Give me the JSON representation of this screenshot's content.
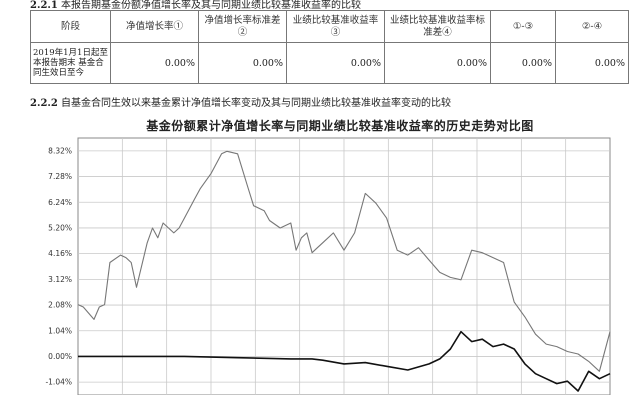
{
  "section_top": {
    "label": "2.2.1",
    "text": "本报告期基金份额净值增长率及其与同期业绩比较基准收益率的比较"
  },
  "performance_table": {
    "headers": [
      "阶段",
      "净值增长率①",
      "净值增长率标准差②",
      "业绩比较基准收益率③",
      "业绩比较基准收益率标准差④",
      "①-③",
      "②-④"
    ],
    "row": {
      "period": "2019年1月1日起至本报告期末 基金合同生效日至今",
      "values": [
        "0.00%",
        "0.00%",
        "0.00%",
        "0.00%",
        "0.00%",
        "0.00%"
      ]
    }
  },
  "section_chart": {
    "label": "2.2.2",
    "text": "自基金合同生效以来基金累计净值增长率变动及其与同期业绩比较基准收益率变动的比较"
  },
  "chart_data": {
    "type": "line",
    "title": "基金份额累计净值增长率与同期业绩比较基准收益率的历史走势对比图",
    "y_ticks": [
      "8.32%",
      "7.28%",
      "6.24%",
      "5.20%",
      "4.16%",
      "3.12%",
      "2.08%",
      "1.04%",
      "0.00%",
      "-1.04%"
    ],
    "ylim": [
      -1.56,
      8.84
    ],
    "grid": true,
    "series": [
      {
        "name": "",
        "color": "#777777",
        "x": [
          0,
          1,
          3,
          4,
          5,
          6,
          8,
          9,
          10,
          11,
          13,
          14,
          15,
          16,
          18,
          19,
          20,
          22,
          23,
          25,
          27,
          28,
          30,
          32,
          33,
          35,
          36,
          38,
          40,
          41,
          42,
          43,
          44,
          45,
          46,
          48,
          50,
          52,
          54,
          56,
          58,
          60,
          62,
          64,
          66,
          68,
          70,
          72,
          74,
          76,
          78,
          80,
          82,
          84,
          86,
          88,
          90,
          92,
          94,
          96,
          98,
          100
        ],
        "y": [
          2.1,
          2.0,
          1.5,
          2.0,
          2.1,
          3.8,
          4.1,
          4.0,
          3.8,
          2.8,
          4.6,
          5.2,
          4.8,
          5.4,
          5.0,
          5.2,
          5.6,
          6.4,
          6.8,
          7.4,
          8.2,
          8.3,
          8.2,
          6.8,
          6.1,
          5.9,
          5.5,
          5.2,
          5.4,
          4.3,
          4.8,
          5.0,
          4.2,
          4.4,
          4.6,
          5.0,
          4.3,
          5.0,
          6.6,
          6.2,
          5.6,
          4.3,
          4.1,
          4.4,
          3.9,
          3.4,
          3.2,
          3.1,
          4.3,
          4.2,
          4.0,
          3.8,
          2.2,
          1.6,
          0.9,
          0.5,
          0.4,
          0.2,
          0.1,
          -0.2,
          -0.6,
          1.0
        ]
      },
      {
        "name": "",
        "color": "#111111",
        "x": [
          0,
          10,
          20,
          30,
          40,
          44,
          46,
          50,
          54,
          58,
          62,
          66,
          68,
          70,
          72,
          74,
          76,
          78,
          80,
          82,
          84,
          86,
          88,
          90,
          92,
          94,
          96,
          98,
          100
        ],
        "y": [
          0.0,
          0.0,
          0.0,
          -0.05,
          -0.1,
          -0.1,
          -0.15,
          -0.3,
          -0.25,
          -0.4,
          -0.55,
          -0.3,
          -0.1,
          0.3,
          1.0,
          0.6,
          0.7,
          0.4,
          0.5,
          0.3,
          -0.3,
          -0.7,
          -0.9,
          -1.1,
          -1.0,
          -1.4,
          -0.6,
          -0.9,
          -0.7
        ]
      }
    ]
  }
}
